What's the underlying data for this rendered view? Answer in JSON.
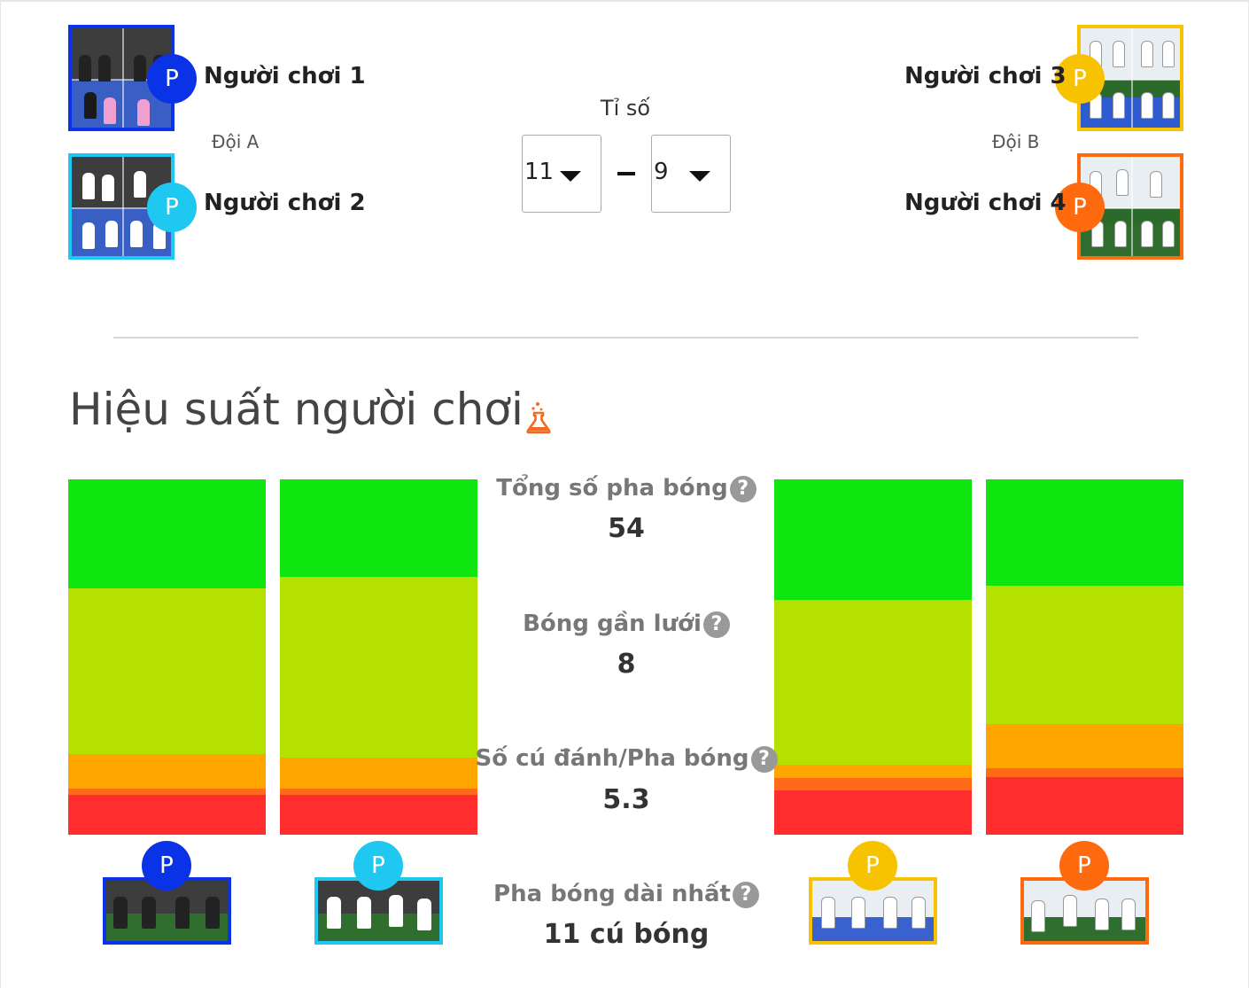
{
  "colors": {
    "player1": "#0a32e6",
    "player2": "#1ec8f0",
    "player3": "#f7c200",
    "player4": "#ff6a0f",
    "seg_green": "#0fe60f",
    "seg_yellowgreen": "#b4e100",
    "seg_orange": "#ffa500",
    "seg_darkorange": "#ff6a1a",
    "seg_red": "#ff2d2d",
    "flask": "#f36b21"
  },
  "players": [
    {
      "badge": "P",
      "name": "Người chơi 1",
      "color": "#0a32e6"
    },
    {
      "badge": "P",
      "name": "Người chơi 2",
      "color": "#1ec8f0"
    },
    {
      "badge": "P",
      "name": "Người chơi 3",
      "color": "#f7c200"
    },
    {
      "badge": "P",
      "name": "Người chơi 4",
      "color": "#ff6a0f"
    }
  ],
  "teams": {
    "a": "Đội A",
    "b": "Đội B"
  },
  "score": {
    "label": "Tỉ số",
    "team_a": "11",
    "team_b": "9"
  },
  "section": {
    "title": "Hiệu suất người chơi",
    "flask_icon": "flask-icon"
  },
  "stats": [
    {
      "label": "Tổng số pha bóng",
      "value": "54"
    },
    {
      "label": "Bóng gần lưới",
      "value": "8"
    },
    {
      "label": "Số cú đánh/Pha bóng",
      "value": "5.3"
    },
    {
      "label": "Pha bóng dài nhất",
      "value": "11 cú bóng"
    }
  ],
  "help_glyph": "?",
  "performance_bars": [
    {
      "player": "Người chơi 1",
      "fractions": {
        "green": 0.307,
        "yellowgreen": 0.467,
        "orange": 0.097,
        "darkorange": 0.017,
        "red": 0.112
      }
    },
    {
      "player": "Người chơi 2",
      "fractions": {
        "green": 0.274,
        "yellowgreen": 0.509,
        "orange": 0.087,
        "darkorange": 0.017,
        "red": 0.113
      }
    },
    {
      "player": "Người chơi 3",
      "fractions": {
        "green": 0.339,
        "yellowgreen": 0.464,
        "orange": 0.037,
        "darkorange": 0.035,
        "red": 0.125
      }
    },
    {
      "player": "Người chơi 4",
      "fractions": {
        "green": 0.299,
        "yellowgreen": 0.389,
        "orange": 0.125,
        "darkorange": 0.025,
        "red": 0.162
      }
    }
  ]
}
